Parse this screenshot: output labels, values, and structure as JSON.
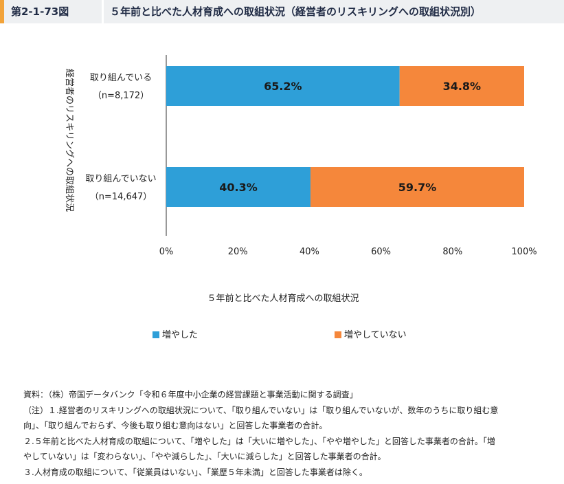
{
  "figure": {
    "number": "第2-1-73図",
    "title": "５年前と比べた人材育成への取組状況（経営者のリスキリングへの取組状況別）"
  },
  "chart_data": {
    "type": "bar",
    "orientation": "horizontal",
    "stacked": true,
    "percent": true,
    "categories": [
      {
        "label": "取り組んでいる",
        "n": "（n=8,172）"
      },
      {
        "label": "取り組んでいない",
        "n": "（n=14,647）"
      }
    ],
    "series": [
      {
        "name": "増やした",
        "color": "#2e9fd8",
        "values": [
          65.2,
          40.3
        ],
        "labels": [
          "65.2%",
          "40.3%"
        ]
      },
      {
        "name": "増やしていない",
        "color": "#f5873b",
        "values": [
          34.8,
          59.7
        ],
        "labels": [
          "34.8%",
          "59.7%"
        ]
      }
    ],
    "xlim": [
      0,
      100
    ],
    "xticks": [
      "0%",
      "20%",
      "40%",
      "60%",
      "80%",
      "100%"
    ],
    "xlabel": "５年前と比べた人材育成への取組状況",
    "ylabel": "経営者のリスキリングへの取組状況",
    "legend_position": "bottom",
    "grid": false
  },
  "notes": [
    "資料：（株）帝国データバンク「令和６年度中小企業の経営課題と事業活動に関する調査」",
    "（注）１.経営者のリスキリングへの取組状況について、「取り組んでいない」は「取り組んでいないが、数年のうちに取り組む意",
    "向」、「取り組んでおらず、今後も取り組む意向はない」と回答した事業者の合計。",
    "２.５年前と比べた人材育成の取組について、「増やした」は「大いに増やした」、「やや増やした」と回答した事業者の合計。「増",
    "やしていない」は「変わらない」、「やや減らした」、「大いに減らした」と回答した事業者の合計。",
    "３.人材育成の取組について、「従業員はいない」、「業歴５年未満」と回答した事業者は除く。"
  ]
}
